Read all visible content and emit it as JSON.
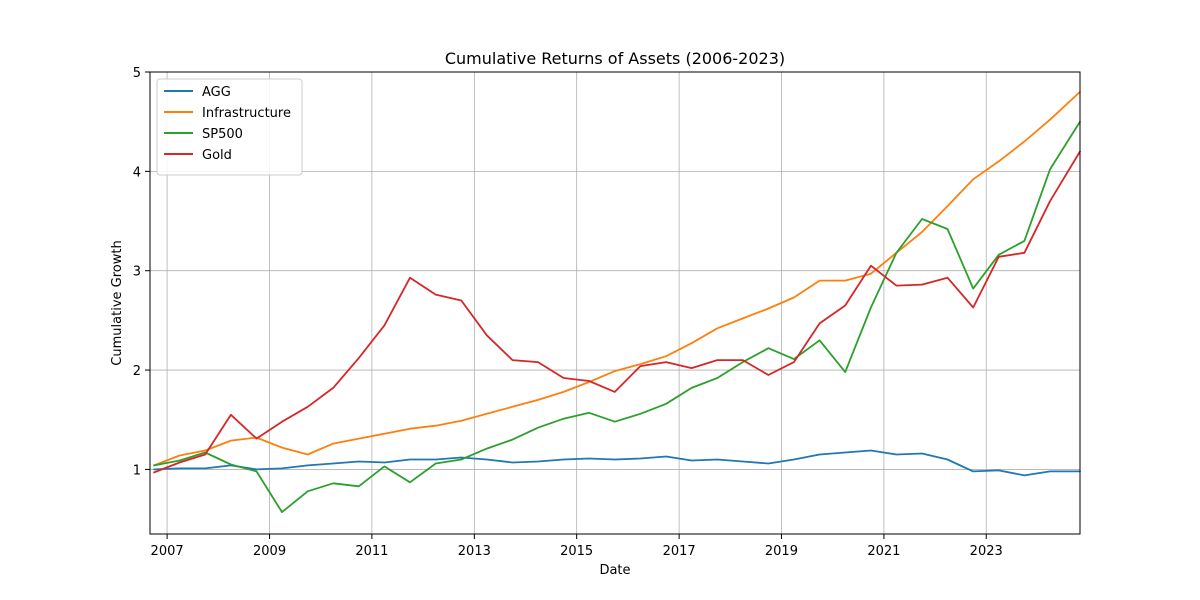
{
  "chart_data": {
    "type": "line",
    "title": "Cumulative Returns of Assets (2006-2023)",
    "xlabel": "Date",
    "ylabel": "Cumulative Growth",
    "xlim": [
      "2006-09-01",
      "2024-10-31"
    ],
    "ylim": [
      0.35,
      5.0
    ],
    "x_ticks": [
      "2007",
      "2009",
      "2011",
      "2013",
      "2015",
      "2017",
      "2019",
      "2021",
      "2023"
    ],
    "y_ticks": [
      1,
      2,
      3,
      4,
      5
    ],
    "grid": true,
    "legend_position": "top-left",
    "series": [
      {
        "name": "AGG",
        "color": "#1f77b4",
        "points": [
          [
            "2006-09-30",
            1.0
          ],
          [
            "2007-03-31",
            1.01
          ],
          [
            "2007-09-30",
            1.01
          ],
          [
            "2008-03-31",
            1.04
          ],
          [
            "2008-09-30",
            1.0
          ],
          [
            "2009-03-31",
            1.01
          ],
          [
            "2009-09-30",
            1.04
          ],
          [
            "2010-03-31",
            1.06
          ],
          [
            "2010-09-30",
            1.08
          ],
          [
            "2011-03-31",
            1.07
          ],
          [
            "2011-09-30",
            1.1
          ],
          [
            "2012-03-31",
            1.1
          ],
          [
            "2012-09-30",
            1.12
          ],
          [
            "2013-03-31",
            1.1
          ],
          [
            "2013-09-30",
            1.07
          ],
          [
            "2014-03-31",
            1.08
          ],
          [
            "2014-09-30",
            1.1
          ],
          [
            "2015-03-31",
            1.11
          ],
          [
            "2015-09-30",
            1.1
          ],
          [
            "2016-03-31",
            1.11
          ],
          [
            "2016-09-30",
            1.13
          ],
          [
            "2017-03-31",
            1.09
          ],
          [
            "2017-09-30",
            1.1
          ],
          [
            "2018-03-31",
            1.08
          ],
          [
            "2018-09-30",
            1.06
          ],
          [
            "2019-03-31",
            1.1
          ],
          [
            "2019-09-30",
            1.15
          ],
          [
            "2020-03-31",
            1.17
          ],
          [
            "2020-09-30",
            1.19
          ],
          [
            "2021-03-31",
            1.15
          ],
          [
            "2021-09-30",
            1.16
          ],
          [
            "2022-03-31",
            1.1
          ],
          [
            "2022-09-30",
            0.98
          ],
          [
            "2023-03-31",
            0.99
          ],
          [
            "2023-09-30",
            0.94
          ],
          [
            "2024-03-31",
            0.98
          ],
          [
            "2024-10-31",
            0.98
          ]
        ]
      },
      {
        "name": "Infrastructure",
        "color": "#ff7f0e",
        "points": [
          [
            "2006-09-30",
            1.04
          ],
          [
            "2007-03-31",
            1.14
          ],
          [
            "2007-09-30",
            1.19
          ],
          [
            "2008-03-31",
            1.29
          ],
          [
            "2008-09-30",
            1.32
          ],
          [
            "2009-03-31",
            1.22
          ],
          [
            "2009-09-30",
            1.15
          ],
          [
            "2010-03-31",
            1.26
          ],
          [
            "2010-09-30",
            1.31
          ],
          [
            "2011-03-31",
            1.36
          ],
          [
            "2011-09-30",
            1.41
          ],
          [
            "2012-03-31",
            1.44
          ],
          [
            "2012-09-30",
            1.49
          ],
          [
            "2013-03-31",
            1.56
          ],
          [
            "2013-09-30",
            1.63
          ],
          [
            "2014-03-31",
            1.7
          ],
          [
            "2014-09-30",
            1.78
          ],
          [
            "2015-03-31",
            1.88
          ],
          [
            "2015-09-30",
            1.99
          ],
          [
            "2016-03-31",
            2.06
          ],
          [
            "2016-09-30",
            2.14
          ],
          [
            "2017-03-31",
            2.27
          ],
          [
            "2017-09-30",
            2.42
          ],
          [
            "2018-03-31",
            2.52
          ],
          [
            "2018-09-30",
            2.62
          ],
          [
            "2019-03-31",
            2.73
          ],
          [
            "2019-09-30",
            2.9
          ],
          [
            "2020-03-31",
            2.9
          ],
          [
            "2020-09-30",
            2.97
          ],
          [
            "2021-03-31",
            3.18
          ],
          [
            "2021-09-30",
            3.39
          ],
          [
            "2022-03-31",
            3.65
          ],
          [
            "2022-09-30",
            3.92
          ],
          [
            "2023-03-31",
            4.1
          ],
          [
            "2023-09-30",
            4.3
          ],
          [
            "2024-03-31",
            4.52
          ],
          [
            "2024-10-31",
            4.8
          ]
        ]
      },
      {
        "name": "SP500",
        "color": "#2ca02c",
        "points": [
          [
            "2006-09-30",
            1.04
          ],
          [
            "2007-03-31",
            1.09
          ],
          [
            "2007-09-30",
            1.17
          ],
          [
            "2008-03-31",
            1.05
          ],
          [
            "2008-09-30",
            0.98
          ],
          [
            "2009-03-31",
            0.57
          ],
          [
            "2009-09-30",
            0.78
          ],
          [
            "2010-03-31",
            0.86
          ],
          [
            "2010-09-30",
            0.83
          ],
          [
            "2011-03-31",
            1.03
          ],
          [
            "2011-09-30",
            0.87
          ],
          [
            "2012-03-31",
            1.06
          ],
          [
            "2012-09-30",
            1.1
          ],
          [
            "2013-03-31",
            1.21
          ],
          [
            "2013-09-30",
            1.3
          ],
          [
            "2014-03-31",
            1.42
          ],
          [
            "2014-09-30",
            1.51
          ],
          [
            "2015-03-31",
            1.57
          ],
          [
            "2015-09-30",
            1.48
          ],
          [
            "2016-03-31",
            1.56
          ],
          [
            "2016-09-30",
            1.66
          ],
          [
            "2017-03-31",
            1.82
          ],
          [
            "2017-09-30",
            1.92
          ],
          [
            "2018-03-31",
            2.08
          ],
          [
            "2018-09-30",
            2.22
          ],
          [
            "2019-03-31",
            2.11
          ],
          [
            "2019-09-30",
            2.3
          ],
          [
            "2020-03-31",
            1.98
          ],
          [
            "2020-09-30",
            2.63
          ],
          [
            "2021-03-31",
            3.18
          ],
          [
            "2021-09-30",
            3.52
          ],
          [
            "2022-03-31",
            3.42
          ],
          [
            "2022-09-30",
            2.82
          ],
          [
            "2023-03-31",
            3.16
          ],
          [
            "2023-09-30",
            3.3
          ],
          [
            "2024-03-31",
            4.02
          ],
          [
            "2024-10-31",
            4.5
          ]
        ]
      },
      {
        "name": "Gold",
        "color": "#d62728",
        "points": [
          [
            "2006-09-30",
            0.97
          ],
          [
            "2007-03-31",
            1.07
          ],
          [
            "2007-09-30",
            1.15
          ],
          [
            "2008-03-31",
            1.55
          ],
          [
            "2008-09-30",
            1.31
          ],
          [
            "2009-03-31",
            1.48
          ],
          [
            "2009-09-30",
            1.63
          ],
          [
            "2010-03-31",
            1.82
          ],
          [
            "2010-09-30",
            2.12
          ],
          [
            "2011-03-31",
            2.45
          ],
          [
            "2011-09-30",
            2.93
          ],
          [
            "2012-03-31",
            2.76
          ],
          [
            "2012-09-30",
            2.7
          ],
          [
            "2013-03-31",
            2.35
          ],
          [
            "2013-09-30",
            2.1
          ],
          [
            "2014-03-31",
            2.08
          ],
          [
            "2014-09-30",
            1.92
          ],
          [
            "2015-03-31",
            1.89
          ],
          [
            "2015-09-30",
            1.78
          ],
          [
            "2016-03-31",
            2.04
          ],
          [
            "2016-09-30",
            2.08
          ],
          [
            "2017-03-31",
            2.02
          ],
          [
            "2017-09-30",
            2.1
          ],
          [
            "2018-03-31",
            2.1
          ],
          [
            "2018-09-30",
            1.95
          ],
          [
            "2019-03-31",
            2.08
          ],
          [
            "2019-09-30",
            2.47
          ],
          [
            "2020-03-31",
            2.65
          ],
          [
            "2020-09-30",
            3.05
          ],
          [
            "2021-03-31",
            2.85
          ],
          [
            "2021-09-30",
            2.86
          ],
          [
            "2022-03-31",
            2.93
          ],
          [
            "2022-09-30",
            2.63
          ],
          [
            "2023-03-31",
            3.14
          ],
          [
            "2023-09-30",
            3.18
          ],
          [
            "2024-03-31",
            3.7
          ],
          [
            "2024-10-31",
            4.2
          ]
        ]
      }
    ]
  }
}
